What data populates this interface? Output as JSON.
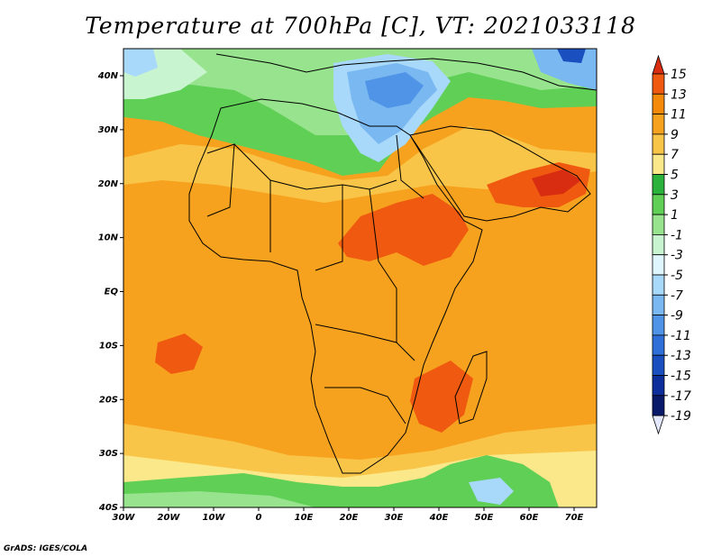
{
  "title": "Temperature at 700hPa [C], VT: 2021033118",
  "credit": "GrADS: IGES/COLA",
  "map": {
    "lon_range": [
      -30,
      75
    ],
    "lat_range": [
      -40,
      45
    ],
    "lat_ticks": [
      "40N",
      "30N",
      "20N",
      "10N",
      "EQ",
      "10S",
      "20S",
      "30S",
      "40S"
    ],
    "lon_ticks": [
      "30W",
      "20W",
      "10W",
      "0",
      "10E",
      "20E",
      "30E",
      "40E",
      "50E",
      "60E",
      "70E"
    ]
  },
  "colorbar": {
    "levels": [
      "15",
      "13",
      "11",
      "9",
      "7",
      "5",
      "3",
      "1",
      "-1",
      "-3",
      "-5",
      "-7",
      "-9",
      "-11",
      "-13",
      "-15",
      "-17",
      "-19"
    ],
    "colors": [
      "#d92d12",
      "#ef5a10",
      "#f58a0a",
      "#f7a21f",
      "#f9c548",
      "#fbe88a",
      "#2bb23c",
      "#5fcf55",
      "#98e38e",
      "#c8f5d0",
      "#dff6ff",
      "#a8d8fa",
      "#7ab8f2",
      "#4f94e6",
      "#2f6fd8",
      "#1a4fbf",
      "#0c2f9c",
      "#0a1a6b",
      "#e4e8ff"
    ]
  },
  "colors": {
    "warm_bg": "#f7a21f",
    "hot": "#ef5a10",
    "cool_green": "#5fcf55",
    "cold_blue": "#7ab8f2",
    "border": "#000000"
  }
}
